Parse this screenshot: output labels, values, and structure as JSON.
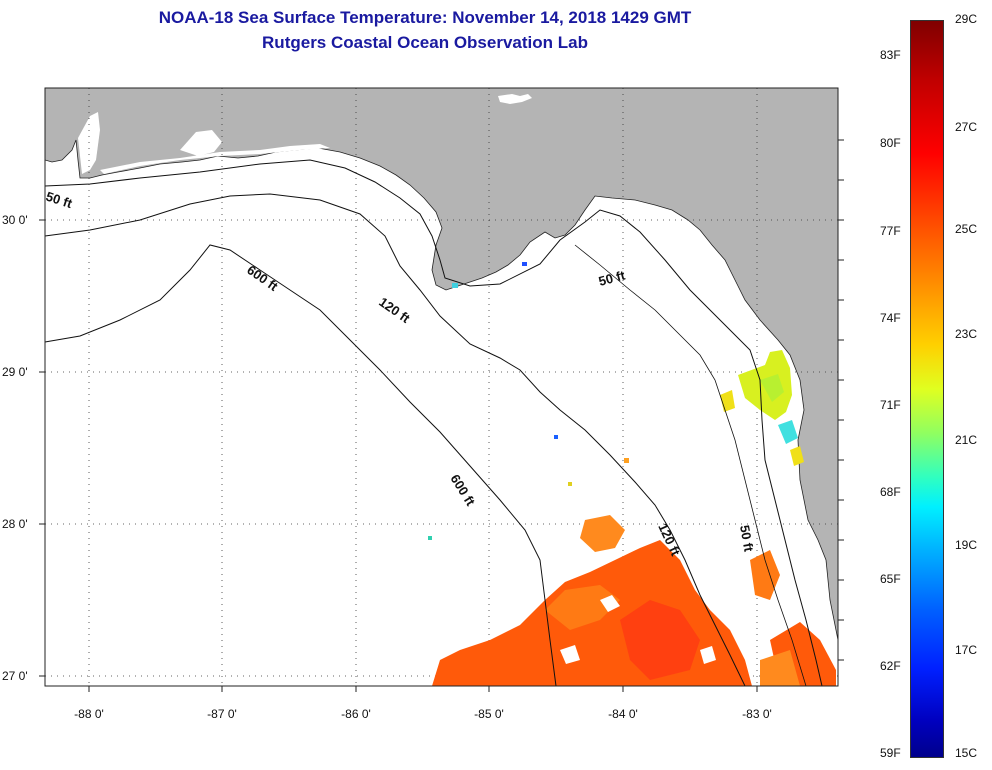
{
  "header": {
    "title_line1": "NOAA-18 Sea Surface Temperature:  November 14, 2018 1429 GMT",
    "title_line2": "Rutgers Coastal Ocean Observation Lab"
  },
  "map": {
    "lon_ticks": [
      "-88 0'",
      "-87 0'",
      "-86 0'",
      "-85 0'",
      "-84 0'",
      "-83 0'"
    ],
    "lat_ticks": [
      "30 0'",
      "29 0'",
      "28 0'",
      "27 0'"
    ],
    "contours": {
      "c50_west": "50 ft",
      "c120_north": "120 ft",
      "c600_north": "600 ft",
      "c50_east": "50 ft",
      "c600_south": "600 ft",
      "c120_south": "120 ft",
      "c50_south": "50 ft"
    },
    "colors": {
      "land": "#b4b4b4",
      "water": "#ffffff"
    }
  },
  "colorbar": {
    "fahrenheit": [
      "83F",
      "80F",
      "77F",
      "74F",
      "71F",
      "68F",
      "65F",
      "62F",
      "59F"
    ],
    "celsius": [
      "29C",
      "27C",
      "25C",
      "23C",
      "21C",
      "19C",
      "17C",
      "15C"
    ]
  }
}
